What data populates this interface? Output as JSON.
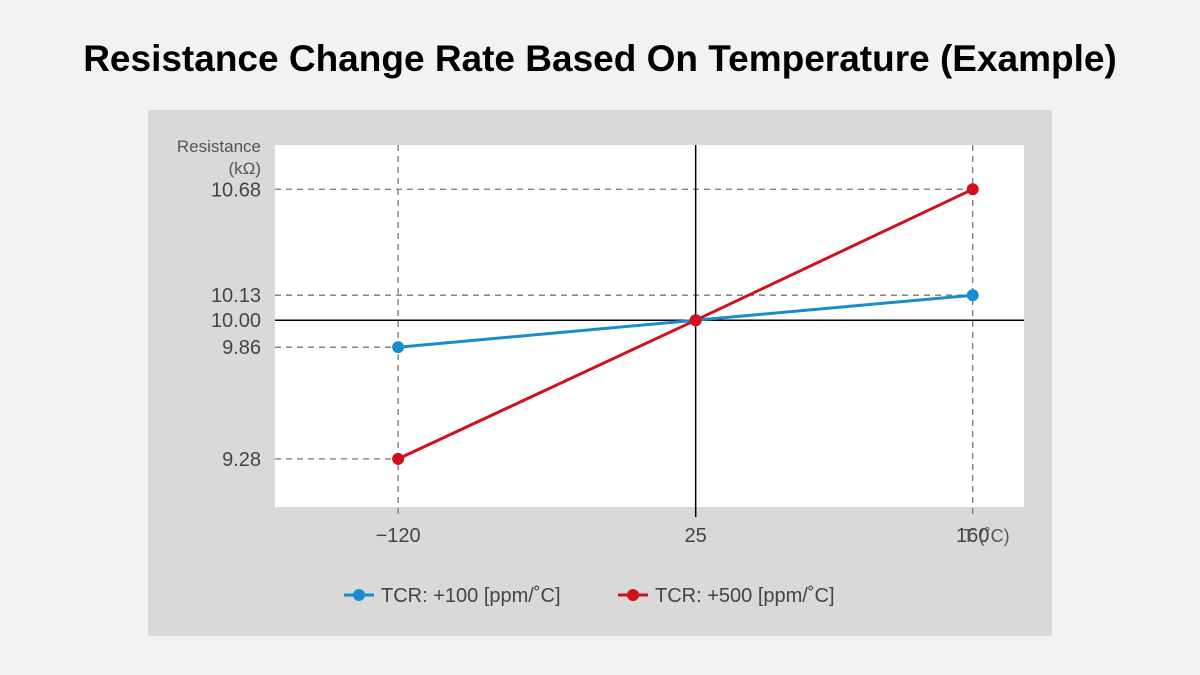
{
  "title": "Resistance Change Rate Based On Temperature (Example)",
  "chart_data": {
    "type": "line",
    "title": "Resistance Change Rate Based On Temperature (Example)",
    "ylabel_lines": [
      "Resistance",
      "(kΩ)"
    ],
    "xlabel": "T (˚C)",
    "x": [
      -120,
      25,
      160
    ],
    "x_tick_labels": [
      "−120",
      "25",
      "160"
    ],
    "y_ticks": [
      10.68,
      10.13,
      10.0,
      9.86,
      9.28
    ],
    "y_tick_labels": [
      "10.68",
      "10.13",
      "10.00",
      "9.86",
      "9.28"
    ],
    "xlim": [
      -180,
      185
    ],
    "ylim": [
      9.03,
      10.91
    ],
    "grid": "dashed reference lines at data points",
    "legend_position": "bottom-center",
    "series": [
      {
        "name": "TCR: +100 [ppm/˚C]",
        "color": "#1a8ccc",
        "values": [
          9.86,
          10.0,
          10.13
        ]
      },
      {
        "name": "TCR: +500 [ppm/˚C]",
        "color": "#d0111b",
        "values": [
          9.28,
          10.0,
          10.68
        ]
      }
    ]
  }
}
